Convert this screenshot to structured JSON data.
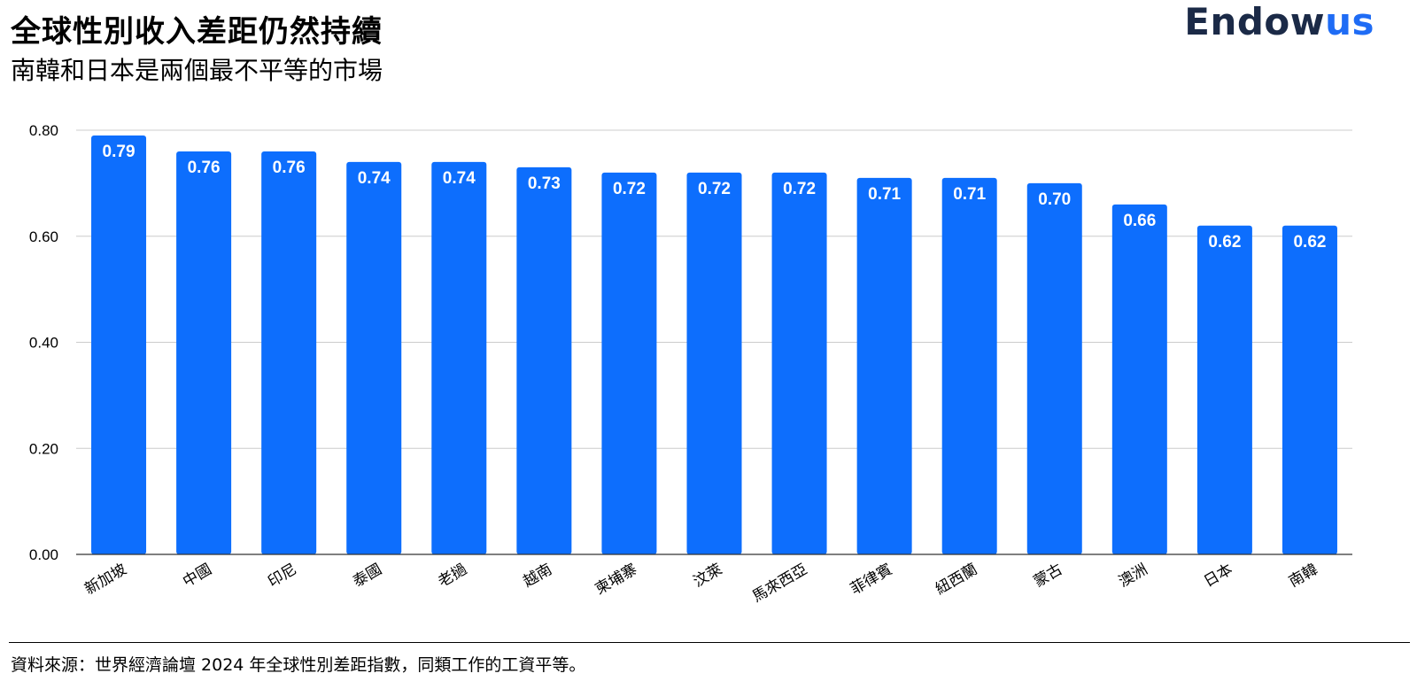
{
  "header": {
    "title": "全球性別收入差距仍然持續",
    "subtitle": "南韓和日本是兩個最不平等的市場",
    "logo_main": "Endow",
    "logo_accent": "us"
  },
  "footer": {
    "source": "資料來源：世界經濟論壇 2024 年全球性別差距指數，同類工作的工資平等。"
  },
  "chart_data": {
    "type": "bar",
    "title": "全球性別收入差距仍然持續",
    "subtitle": "南韓和日本是兩個最不平等的市場",
    "categories": [
      "新加坡",
      "中國",
      "印尼",
      "泰國",
      "老撾",
      "越南",
      "柬埔寨",
      "汶萊",
      "馬來西亞",
      "菲律賓",
      "紐西蘭",
      "蒙古",
      "澳洲",
      "日本",
      "南韓"
    ],
    "values": [
      0.79,
      0.76,
      0.76,
      0.74,
      0.74,
      0.73,
      0.72,
      0.72,
      0.72,
      0.71,
      0.71,
      0.7,
      0.66,
      0.62,
      0.62
    ],
    "data_labels": [
      "0.79",
      "0.76",
      "0.76",
      "0.74",
      "0.74",
      "0.73",
      "0.72",
      "0.72",
      "0.72",
      "0.71",
      "0.71",
      "0.70",
      "0.66",
      "0.62",
      "0.62"
    ],
    "y_ticks": [
      "0.00",
      "0.20",
      "0.40",
      "0.60",
      "0.80"
    ],
    "ylim": [
      0,
      0.8
    ],
    "xlabel": "",
    "ylabel": "",
    "grid": true,
    "legend": "none",
    "bar_color": "#0d6efd"
  }
}
